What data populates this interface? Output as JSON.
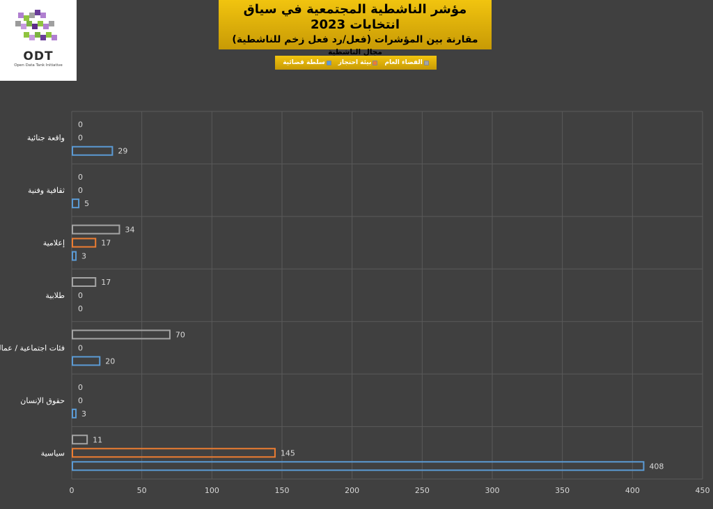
{
  "header": {
    "title": "مؤشر الناشطية المجتمعية في سياق انتخابات 2023",
    "subtitle": "مقارنة بين المؤشرات (فعل/رد فعل زخم للناشطية)",
    "category_label": "مجال الناشطية"
  },
  "logo": {
    "name": "ODT",
    "tagline": "Open Data Tank Initiative"
  },
  "legend": {
    "items": [
      {
        "label": "سلطة قضائية",
        "color": "#5b9bd5"
      },
      {
        "label": "بيئة احتجاز",
        "color": "#ed7d31"
      },
      {
        "label": "الفضاء العام",
        "color": "#a5a5a5"
      }
    ]
  },
  "chart_data": {
    "type": "bar",
    "orientation": "horizontal",
    "categories": [
      "واقعة جنائية",
      "ثقافية وفنية",
      "إعلامية",
      "طلابية",
      "فئات اجتماعية / عمالية",
      "حقوق الإنسان",
      "سياسية"
    ],
    "series": [
      {
        "name": "سلطة قضائية",
        "color": "#5b9bd5",
        "values": [
          29,
          5,
          3,
          0,
          20,
          3,
          408
        ]
      },
      {
        "name": "بيئة احتجاز",
        "color": "#ed7d31",
        "values": [
          0,
          0,
          17,
          0,
          0,
          0,
          145
        ]
      },
      {
        "name": "الفضاء العام",
        "color": "#a5a5a5",
        "values": [
          0,
          0,
          34,
          17,
          70,
          0,
          11
        ]
      }
    ],
    "xlim": [
      0,
      450
    ],
    "xticks": [
      0,
      50,
      100,
      150,
      200,
      250,
      300,
      350,
      400,
      450
    ],
    "grid": true,
    "legend_position": "top"
  }
}
